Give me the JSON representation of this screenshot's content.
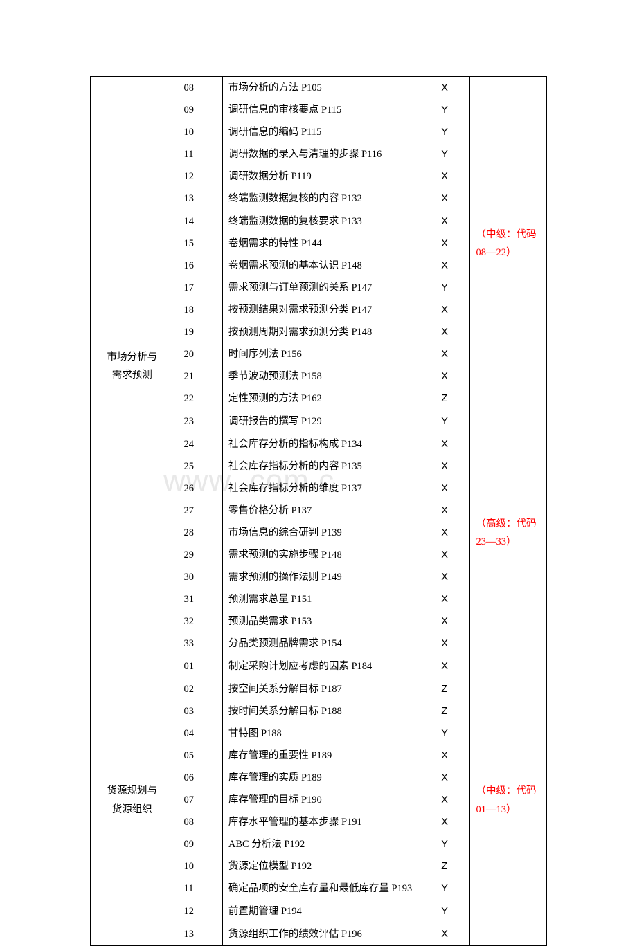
{
  "watermark": "www                 .com.c",
  "sections": [
    {
      "category_lines": [
        "市场分析与",
        "需求预测"
      ],
      "groups": [
        {
          "note": "（中级：代码08—22）",
          "note_color": "#ff0000",
          "red_top_border": false,
          "rows": [
            {
              "code": "08",
              "desc": "市场分析的方法 P105",
              "mark": "X"
            },
            {
              "code": "09",
              "desc": "调研信息的审核要点 P115",
              "mark": "Y"
            },
            {
              "code": "10",
              "desc": "调研信息的编码 P115",
              "mark": "Y"
            },
            {
              "code": "11",
              "desc": "调研数据的录入与清理的步骤 P116",
              "mark": "Y"
            },
            {
              "code": "12",
              "desc": "调研数据分析 P119",
              "mark": "X"
            },
            {
              "code": "13",
              "desc": "终端监测数据复核的内容 P132",
              "mark": "X"
            },
            {
              "code": "14",
              "desc": "终端监测数据的复核要求 P133",
              "mark": "X"
            },
            {
              "code": "15",
              "desc": "卷烟需求的特性 P144",
              "mark": "X"
            },
            {
              "code": "16",
              "desc": "卷烟需求预测的基本认识 P148",
              "mark": "X"
            },
            {
              "code": "17",
              "desc": "需求预测与订单预测的关系 P147",
              "mark": "Y"
            },
            {
              "code": "18",
              "desc": "按预测结果对需求预测分类 P147",
              "mark": "X"
            },
            {
              "code": "19",
              "desc": "按预测周期对需求预测分类 P148",
              "mark": "X"
            },
            {
              "code": "20",
              "desc": "时间序列法 P156",
              "mark": "X"
            },
            {
              "code": "21",
              "desc": "季节波动预测法 P158",
              "mark": "X"
            },
            {
              "code": "22",
              "desc": "定性预测的方法 P162",
              "mark": "Z"
            }
          ]
        },
        {
          "note": "（高级：代码23—33）",
          "note_color": "#ff0000",
          "red_top_border": true,
          "rows": [
            {
              "code": "23",
              "desc": "调研报告的撰写 P129",
              "mark": "Y"
            },
            {
              "code": "24",
              "desc": "社会库存分析的指标构成 P134",
              "mark": "X"
            },
            {
              "code": "25",
              "desc": "社会库存指标分析的内容 P135",
              "mark": "X"
            },
            {
              "code": "26",
              "desc": "社会库存指标分析的维度 P137",
              "mark": "X"
            },
            {
              "code": "27",
              "desc": "零售价格分析 P137",
              "mark": "X"
            },
            {
              "code": "28",
              "desc": "市场信息的综合研判 P139",
              "mark": "X"
            },
            {
              "code": "29",
              "desc": "需求预测的实施步骤 P148",
              "mark": "X"
            },
            {
              "code": "30",
              "desc": "需求预测的操作法则 P149",
              "mark": "X"
            },
            {
              "code": "31",
              "desc": "预测需求总量 P151",
              "mark": "X"
            },
            {
              "code": "32",
              "desc": "预测品类需求 P153",
              "mark": "X"
            },
            {
              "code": "33",
              "desc": "分品类预测品牌需求 P154",
              "mark": "X"
            }
          ]
        }
      ]
    },
    {
      "category_lines": [
        "货源规划与",
        "货源组织"
      ],
      "groups": [
        {
          "note": "（中级：代码01—13）",
          "note_color": "#ff0000",
          "red_top_border": false,
          "split_after": 11,
          "rows": [
            {
              "code": "01",
              "desc": "制定采购计划应考虑的因素 P184",
              "mark": "X"
            },
            {
              "code": "02",
              "desc": "按空间关系分解目标 P187",
              "mark": "Z"
            },
            {
              "code": "03",
              "desc": "按时间关系分解目标 P188",
              "mark": "Z"
            },
            {
              "code": "04",
              "desc": "甘特图 P188",
              "mark": "Y"
            },
            {
              "code": "05",
              "desc": "库存管理的重要性 P189",
              "mark": "X"
            },
            {
              "code": "06",
              "desc": "库存管理的实质 P189",
              "mark": "X"
            },
            {
              "code": "07",
              "desc": "库存管理的目标 P190",
              "mark": "X"
            },
            {
              "code": "08",
              "desc": "库存水平管理的基本步骤 P191",
              "mark": "X"
            },
            {
              "code": "09",
              "desc": "ABC 分析法 P192",
              "mark": "Y"
            },
            {
              "code": "10",
              "desc": "货源定位模型 P192",
              "mark": "Z"
            },
            {
              "code": "11",
              "desc": "确定品项的安全库存量和最低库存量 P193",
              "mark": "Y"
            },
            {
              "code": "12",
              "desc": "前置期管理 P194",
              "mark": "Y"
            },
            {
              "code": "13",
              "desc": "货源组织工作的绩效评估 P196",
              "mark": "X"
            }
          ]
        }
      ]
    }
  ]
}
